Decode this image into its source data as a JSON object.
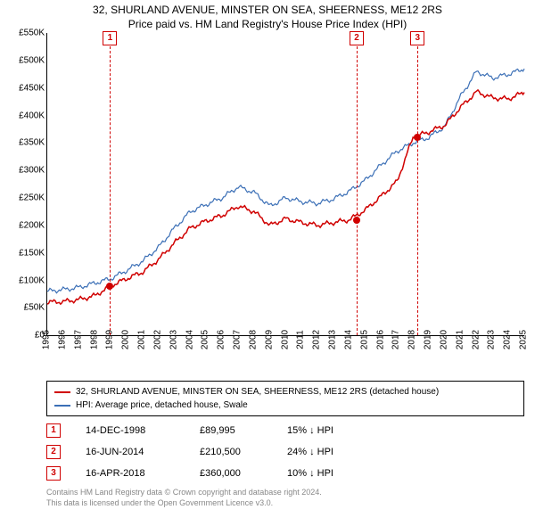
{
  "title_line1": "32, SHURLAND AVENUE, MINSTER ON SEA, SHEERNESS, ME12 2RS",
  "title_line2": "Price paid vs. HM Land Registry's House Price Index (HPI)",
  "chart": {
    "type": "line",
    "background_color": "#ffffff",
    "axis_color": "#000000",
    "x_start_year": 1995,
    "x_end_year": 2025,
    "y_min_k": 0,
    "y_max_k": 550,
    "y_tick_step_k": 50,
    "y_label_prefix": "£",
    "y_label_suffix": "K",
    "y_zero_label": "£0",
    "x_tick_fontsize": 10,
    "y_tick_fontsize": 10,
    "event_line_color": "#d00000",
    "event_line_dash": true,
    "series": [
      {
        "id": "property",
        "label": "32, SHURLAND AVENUE, MINSTER ON SEA, SHEERNESS, ME12 2RS (detached house)",
        "color": "#d00000",
        "stroke_width": 1.5,
        "values_k_by_year": {
          "1995": 60,
          "1996": 61,
          "1997": 65,
          "1998": 72,
          "1999": 90,
          "2000": 103,
          "2001": 115,
          "2002": 138,
          "2003": 168,
          "2004": 195,
          "2005": 208,
          "2006": 218,
          "2007": 235,
          "2008": 225,
          "2009": 200,
          "2010": 212,
          "2011": 205,
          "2012": 200,
          "2013": 205,
          "2014": 210,
          "2015": 228,
          "2016": 253,
          "2017": 280,
          "2018": 360,
          "2019": 370,
          "2020": 382,
          "2021": 415,
          "2022": 443,
          "2023": 432,
          "2024": 430,
          "2025": 442
        }
      },
      {
        "id": "hpi",
        "label": "HPI: Average price, detached house, Swale",
        "color": "#3b6fb6",
        "stroke_width": 1.2,
        "values_k_by_year": {
          "1995": 80,
          "1996": 83,
          "1997": 87,
          "1998": 95,
          "1999": 103,
          "2000": 118,
          "2001": 135,
          "2002": 160,
          "2003": 195,
          "2004": 225,
          "2005": 238,
          "2006": 250,
          "2007": 270,
          "2008": 260,
          "2009": 235,
          "2010": 250,
          "2011": 243,
          "2012": 240,
          "2013": 248,
          "2014": 262,
          "2015": 282,
          "2016": 310,
          "2017": 335,
          "2018": 350,
          "2019": 360,
          "2020": 380,
          "2021": 435,
          "2022": 480,
          "2023": 468,
          "2024": 475,
          "2025": 485
        }
      }
    ],
    "sale_markers": [
      {
        "year_fraction": 1998.95,
        "value_k": 90
      },
      {
        "year_fraction": 2014.46,
        "value_k": 210
      },
      {
        "year_fraction": 2018.29,
        "value_k": 360
      }
    ],
    "event_lines": [
      {
        "badge": "1",
        "year_fraction": 1998.95
      },
      {
        "badge": "2",
        "year_fraction": 2014.46
      },
      {
        "badge": "3",
        "year_fraction": 2018.29
      }
    ]
  },
  "legend": {
    "border_color": "#000000"
  },
  "events_table": [
    {
      "badge": "1",
      "date": "14-DEC-1998",
      "price": "£89,995",
      "diff": "15% ↓ HPI"
    },
    {
      "badge": "2",
      "date": "16-JUN-2014",
      "price": "£210,500",
      "diff": "24% ↓ HPI"
    },
    {
      "badge": "3",
      "date": "16-APR-2018",
      "price": "£360,000",
      "diff": "10% ↓ HPI"
    }
  ],
  "footnote_line1": "Contains HM Land Registry data © Crown copyright and database right 2024.",
  "footnote_line2": "This data is licensed under the Open Government Licence v3.0."
}
